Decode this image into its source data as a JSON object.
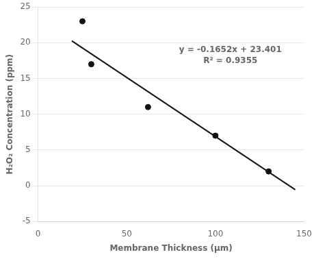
{
  "chart_data": {
    "type": "scatter",
    "xlabel": "Membrane Thickness (μm)",
    "ylabel": "H₂O₂ Concentration (ppm)",
    "series": [
      {
        "type": "scatter",
        "x": [
          25,
          30,
          62,
          100,
          130
        ],
        "values": [
          23,
          17,
          11,
          7,
          2
        ],
        "color": "#111111"
      },
      {
        "type": "line",
        "x": [
          19,
          145
        ],
        "values": [
          20.2622,
          -0.553
        ],
        "color": "#111111"
      }
    ],
    "annotation": [
      "y = -0.1652x + 23.401",
      "R² = 0.9355"
    ],
    "xlim": [
      0,
      150
    ],
    "xticks": [
      0,
      50,
      100,
      150
    ],
    "ylim": [
      -5,
      25
    ],
    "yticks": [
      -5,
      0,
      5,
      10,
      15,
      20,
      25
    ],
    "grid": "y"
  }
}
